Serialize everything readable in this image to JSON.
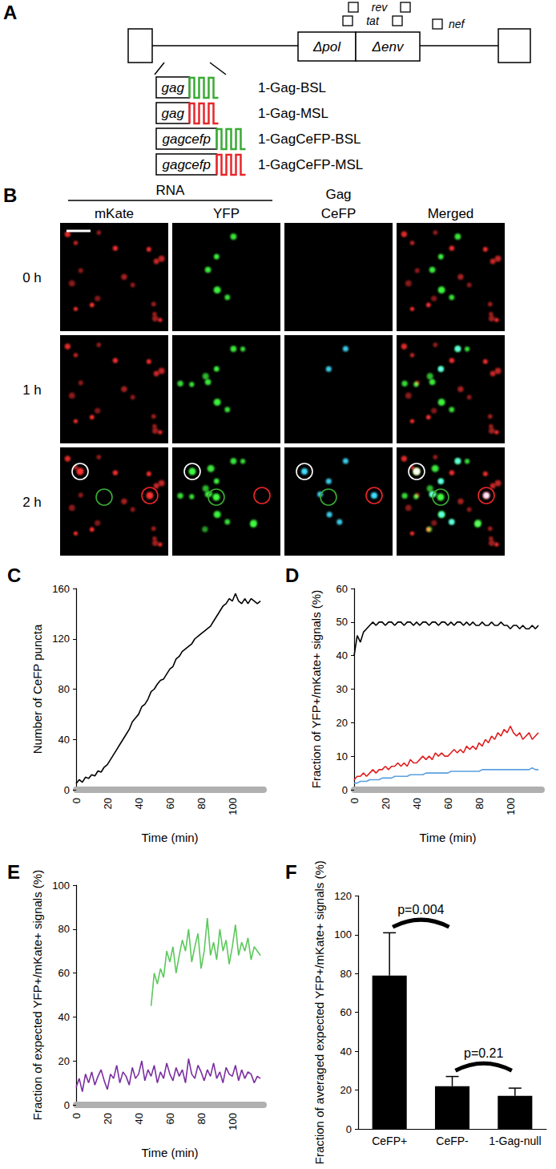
{
  "diagram": {
    "panel_label": "A",
    "genome": {
      "boxes": [
        "Δpol",
        "Δenv"
      ],
      "genes": [
        "rev",
        "tat",
        "nef"
      ]
    },
    "constructs": [
      {
        "gene": "gag",
        "color": "#3aaa35",
        "label": "1-Gag-BSL"
      },
      {
        "gene": "gag",
        "color": "#e8262b",
        "label": "1-Gag-MSL"
      },
      {
        "gene": "gagcefp",
        "color": "#3aaa35",
        "label": "1-GagCeFP-BSL"
      },
      {
        "gene": "gagcefp",
        "color": "#e8262b",
        "label": "1-GagCeFP-MSL"
      }
    ]
  },
  "images": {
    "panel_label": "B",
    "group": {
      "text": "RNA",
      "span": 2
    },
    "columns": [
      "mKate",
      "YFP",
      "Gag CeFP",
      "Merged"
    ],
    "rows": [
      "0 h",
      "1 h",
      "2 h"
    ]
  },
  "chart_data": [
    {
      "type": "line",
      "title": "C",
      "x": [
        0,
        2,
        4,
        6,
        8,
        10,
        12,
        14,
        16,
        18,
        20,
        22,
        24,
        26,
        28,
        30,
        32,
        34,
        36,
        38,
        40,
        42,
        44,
        46,
        48,
        50,
        52,
        54,
        56,
        58,
        60,
        62,
        64,
        66,
        68,
        70,
        72,
        74,
        76,
        78,
        80,
        82,
        84,
        86,
        88,
        90,
        92,
        94,
        96,
        98,
        100,
        102,
        104,
        106,
        108,
        110,
        112,
        114,
        116,
        118
      ],
      "series": [
        {
          "color": "#000000",
          "values": [
            5,
            8,
            6,
            10,
            9,
            12,
            11,
            15,
            14,
            18,
            20,
            24,
            28,
            32,
            36,
            40,
            44,
            48,
            54,
            57,
            60,
            66,
            68,
            72,
            78,
            80,
            84,
            87,
            88,
            92,
            96,
            98,
            104,
            106,
            110,
            112,
            114,
            116,
            120,
            122,
            124,
            126,
            128,
            130,
            134,
            138,
            142,
            146,
            148,
            152,
            150,
            156,
            150,
            148,
            152,
            148,
            152,
            150,
            148,
            150
          ]
        }
      ],
      "xlim": [
        0,
        120
      ],
      "xticks": [
        0,
        20,
        40,
        60,
        80,
        100
      ],
      "ylim": [
        0,
        160
      ],
      "yticks": [
        0,
        40,
        80,
        120,
        160
      ],
      "xlabel": "Time (min)",
      "ylabel": "Number of CeFP puncta",
      "grid": false
    },
    {
      "type": "line",
      "title": "D",
      "x": [
        0,
        2,
        4,
        6,
        8,
        10,
        12,
        14,
        16,
        18,
        20,
        22,
        24,
        26,
        28,
        30,
        32,
        34,
        36,
        38,
        40,
        42,
        44,
        46,
        48,
        50,
        52,
        54,
        56,
        58,
        60,
        62,
        64,
        66,
        68,
        70,
        72,
        74,
        76,
        78,
        80,
        82,
        84,
        86,
        88,
        90,
        92,
        94,
        96,
        98,
        100,
        102,
        104,
        106,
        108,
        110,
        112,
        114,
        116,
        118
      ],
      "series": [
        {
          "color": "#000000",
          "values": [
            40,
            46,
            44,
            47,
            48,
            49,
            50,
            49,
            50,
            50,
            49,
            50,
            50,
            49,
            50,
            50,
            49,
            50,
            50,
            49,
            50,
            49,
            50,
            50,
            49,
            50,
            50,
            49,
            50,
            50,
            49,
            50,
            49,
            50,
            50,
            49,
            50,
            49,
            50,
            49,
            49,
            50,
            49,
            49,
            50,
            49,
            49,
            50,
            49,
            49,
            48,
            49,
            49,
            48,
            49,
            48,
            48,
            49,
            48,
            49
          ]
        },
        {
          "color": "#e02020",
          "values": [
            3,
            4,
            4,
            5,
            4,
            5,
            6,
            5,
            6,
            6,
            7,
            6,
            7,
            7,
            8,
            7,
            8,
            7,
            9,
            8,
            8,
            9,
            10,
            9,
            10,
            9,
            11,
            10,
            11,
            10,
            10,
            11,
            12,
            11,
            12,
            11,
            13,
            12,
            13,
            12,
            14,
            13,
            15,
            14,
            16,
            15,
            17,
            16,
            18,
            17,
            19,
            17,
            16,
            17,
            15,
            16,
            17,
            15,
            16,
            17
          ]
        },
        {
          "color": "#5aa0e0",
          "values": [
            2,
            2,
            2.5,
            2.5,
            2.5,
            3,
            3,
            3,
            3,
            3.5,
            3.5,
            3.5,
            3.5,
            4,
            4,
            4,
            4,
            4,
            4.5,
            4.5,
            4.5,
            4.5,
            4.5,
            5,
            5,
            5,
            5,
            5,
            5,
            5,
            5,
            5.5,
            5.5,
            5.5,
            5.5,
            5.5,
            5.5,
            5.5,
            5.5,
            5.5,
            5.5,
            6,
            6,
            6,
            6,
            6,
            6,
            6,
            6,
            6,
            6,
            6,
            6,
            6,
            6,
            6,
            6,
            6.5,
            6,
            6
          ]
        }
      ],
      "xlim": [
        0,
        120
      ],
      "xticks": [
        0,
        20,
        40,
        60,
        80,
        100
      ],
      "ylim": [
        0,
        60
      ],
      "yticks": [
        0,
        10,
        20,
        30,
        40,
        50,
        60
      ],
      "xlabel": "Time (min)",
      "ylabel": "Fraction of YFP+/mKate+ signals (%)",
      "grid": false
    },
    {
      "type": "line",
      "title": "E",
      "x": [
        0,
        2,
        4,
        6,
        8,
        10,
        12,
        14,
        16,
        18,
        20,
        22,
        24,
        26,
        28,
        30,
        32,
        34,
        36,
        38,
        40,
        42,
        44,
        46,
        48,
        50,
        52,
        54,
        56,
        58,
        60,
        62,
        64,
        66,
        68,
        70,
        72,
        74,
        76,
        78,
        80,
        82,
        84,
        86,
        88,
        90,
        92,
        94,
        96,
        98,
        100,
        102,
        104,
        106,
        108,
        110,
        112,
        114,
        116,
        118
      ],
      "series": [
        {
          "color": "#5cc85c",
          "values": [
            null,
            null,
            null,
            null,
            null,
            null,
            null,
            null,
            null,
            null,
            null,
            null,
            null,
            null,
            null,
            null,
            null,
            null,
            null,
            null,
            null,
            null,
            null,
            null,
            45,
            60,
            55,
            62,
            58,
            70,
            65,
            72,
            60,
            68,
            75,
            70,
            80,
            65,
            72,
            78,
            62,
            70,
            85,
            68,
            74,
            66,
            80,
            70,
            75,
            64,
            72,
            82,
            68,
            74,
            70,
            76,
            66,
            72,
            70,
            68
          ]
        },
        {
          "color": "#7a2ea0",
          "values": [
            8,
            12,
            6,
            14,
            10,
            15,
            9,
            13,
            16,
            11,
            7,
            14,
            12,
            18,
            10,
            15,
            13,
            9,
            17,
            12,
            14,
            20,
            11,
            16,
            13,
            18,
            10,
            15,
            12,
            19,
            14,
            11,
            17,
            13,
            16,
            10,
            21,
            14,
            12,
            18,
            15,
            11,
            16,
            13,
            19,
            12,
            15,
            10,
            17,
            14,
            13,
            18,
            11,
            16,
            12,
            15,
            14,
            10,
            13,
            12
          ]
        }
      ],
      "xlim": [
        0,
        120
      ],
      "xticks": [
        0,
        20,
        40,
        60,
        80,
        100
      ],
      "ylim": [
        0,
        100
      ],
      "yticks": [
        0,
        20,
        40,
        60,
        80,
        100
      ],
      "xlabel": "Time (min)",
      "ylabel": "Fraction of expected YFP+/mKate+ signals (%)",
      "grid": false
    },
    {
      "type": "bar",
      "title": "F",
      "categories": [
        "CeFP+",
        "CeFP-",
        "1-Gag-null"
      ],
      "values": [
        79,
        22,
        17
      ],
      "errors": [
        22,
        5,
        4
      ],
      "color": "#000000",
      "ylim": [
        0,
        120
      ],
      "yticks": [
        0,
        20,
        40,
        60,
        80,
        100,
        120
      ],
      "ylabel": "Fraction of averaged expected YFP+/mKate+ signals (%)",
      "annotations": [
        {
          "text": "p=0.004",
          "between": [
            "CeFP+",
            "CeFP-"
          ]
        },
        {
          "text": "p=0.21",
          "between": [
            "CeFP-",
            "1-Gag-null"
          ]
        }
      ],
      "grid": false
    }
  ]
}
